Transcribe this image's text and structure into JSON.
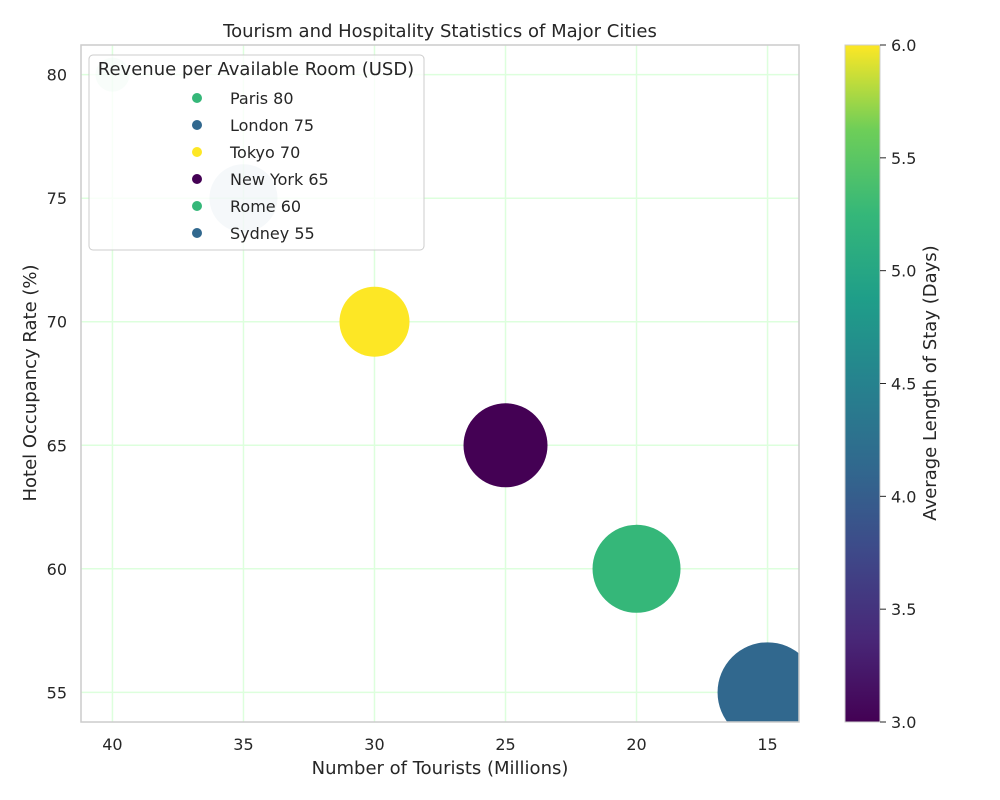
{
  "chart_data": {
    "type": "scatter",
    "title": "Tourism and Hospitality Statistics of Major Cities",
    "xlabel": "Number of Tourists (Millions)",
    "ylabel": "Hotel Occupancy Rate (%)",
    "x_inverted": true,
    "xlim": [
      41.2,
      13.8
    ],
    "ylim": [
      53.8,
      81.2
    ],
    "xticks": [
      40,
      35,
      30,
      25,
      20,
      15
    ],
    "yticks": [
      55,
      60,
      65,
      70,
      75,
      80
    ],
    "grid": true,
    "grid_color": "#ddffdd",
    "series": [
      {
        "city": "Paris",
        "label": "Paris 80",
        "tourists": 40,
        "occupancy": 80,
        "revpar": 80,
        "stay_days": 5.0,
        "color": "#35b779"
      },
      {
        "city": "London",
        "label": "London 75",
        "tourists": 35,
        "occupancy": 75,
        "revpar": 75,
        "stay_days": 4.0,
        "color": "#31688e"
      },
      {
        "city": "Tokyo",
        "label": "Tokyo 70",
        "tourists": 30,
        "occupancy": 70,
        "revpar": 70,
        "stay_days": 6.0,
        "color": "#fde725"
      },
      {
        "city": "New York",
        "label": "New York 65",
        "tourists": 25,
        "occupancy": 65,
        "revpar": 65,
        "stay_days": 3.0,
        "color": "#440154"
      },
      {
        "city": "Rome",
        "label": "Rome 60",
        "tourists": 20,
        "occupancy": 60,
        "revpar": 60,
        "stay_days": 5.0,
        "color": "#35b779"
      },
      {
        "city": "Sydney",
        "label": "Sydney 55",
        "tourists": 15,
        "occupancy": 55,
        "revpar": 55,
        "stay_days": 4.0,
        "color": "#31688e"
      }
    ],
    "legend": {
      "title": "Revenue per Available Room (USD)",
      "position": "top-left"
    },
    "colorbar": {
      "label": "Average Length of Stay (Days)",
      "colormap": "viridis",
      "range": [
        3.0,
        6.0
      ],
      "ticks": [
        "3.0",
        "3.5",
        "4.0",
        "4.5",
        "5.0",
        "5.5",
        "6.0"
      ]
    }
  }
}
